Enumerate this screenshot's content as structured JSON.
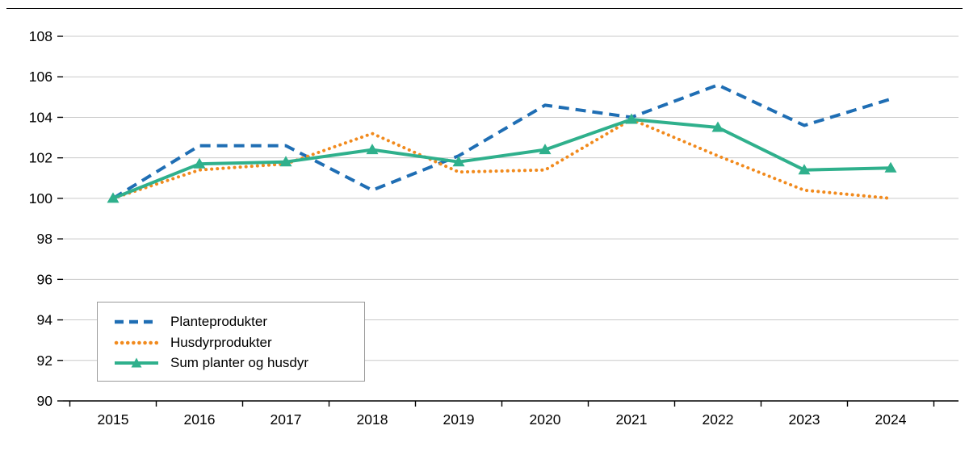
{
  "chart_data": {
    "type": "line",
    "x": [
      "2015",
      "2016",
      "2017",
      "2018",
      "2019",
      "2020",
      "2021",
      "2022",
      "2023",
      "2024"
    ],
    "series": [
      {
        "name": "Planteprodukter",
        "color": "#1f6eb4",
        "style": "dashed",
        "marker": "none",
        "values": [
          100.0,
          102.6,
          102.6,
          100.4,
          102.1,
          104.6,
          104.0,
          105.6,
          103.6,
          104.9
        ]
      },
      {
        "name": "Husdyrprodukter",
        "color": "#f18a1d",
        "style": "dotted",
        "marker": "none",
        "values": [
          100.0,
          101.4,
          101.7,
          103.2,
          101.3,
          101.4,
          103.9,
          102.1,
          100.4,
          100.0
        ]
      },
      {
        "name": "Sum planter og husdyr",
        "color": "#2fb08c",
        "style": "solid",
        "marker": "triangle",
        "values": [
          100.0,
          101.7,
          101.8,
          102.4,
          101.8,
          102.4,
          103.9,
          103.5,
          101.4,
          101.5
        ]
      }
    ],
    "title": "",
    "xlabel": "",
    "ylabel": "",
    "ylim": [
      90,
      108
    ],
    "ytick_step": 2,
    "grid": true,
    "gridline_color": "#c9c9c9",
    "axis_color": "#000000",
    "legend_position": "lower-left"
  }
}
